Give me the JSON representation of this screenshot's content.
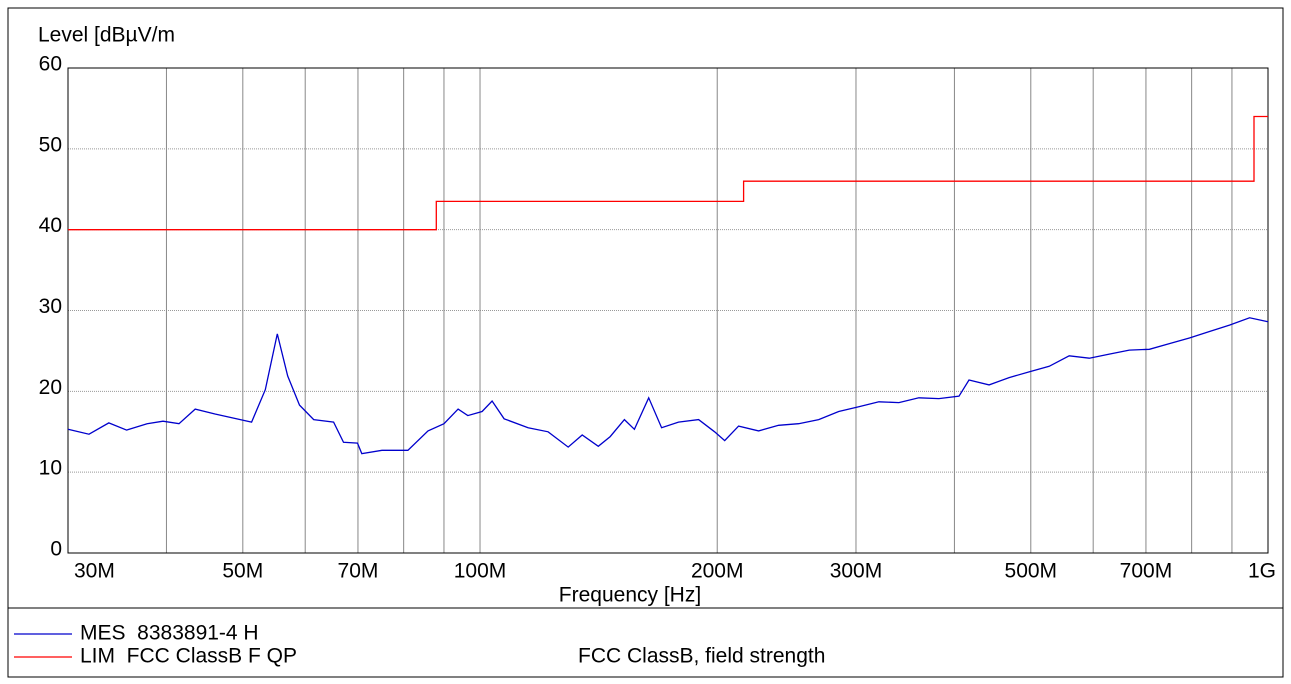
{
  "chart_data": {
    "type": "line",
    "ylabel": "Level [dBµV/m",
    "xlabel": "Frequency [Hz]",
    "log_x": true,
    "grid": true,
    "xlim": [
      30000000,
      1000000000
    ],
    "ylim": [
      0,
      60
    ],
    "yticks": [
      0,
      10,
      20,
      30,
      40,
      50,
      60
    ],
    "xticks": [
      {
        "value": 30000000,
        "label": "30M"
      },
      {
        "value": 50000000,
        "label": "50M"
      },
      {
        "value": 70000000,
        "label": "70M"
      },
      {
        "value": 100000000,
        "label": "100M"
      },
      {
        "value": 200000000,
        "label": "200M"
      },
      {
        "value": 300000000,
        "label": "300M"
      },
      {
        "value": 500000000,
        "label": "500M"
      },
      {
        "value": 700000000,
        "label": "700M"
      },
      {
        "value": 1000000000,
        "label": "1G"
      }
    ],
    "x_minor_ticks": [
      40000000,
      60000000,
      80000000,
      90000000,
      400000000,
      600000000,
      800000000,
      900000000
    ],
    "series": [
      {
        "name": "MES  8383891-4 H",
        "color": "#0000cc",
        "x": [
          30000000,
          31900000,
          33800000,
          35600000,
          37800000,
          39600000,
          41500000,
          43500000,
          46100000,
          51300000,
          53400000,
          55300000,
          57000000,
          59000000,
          61500000,
          65200000,
          67100000,
          69900000,
          70800000,
          75100000,
          81000000,
          85900000,
          90000000,
          93800000,
          96500000,
          100600000,
          103600000,
          107300000,
          115100000,
          122000000,
          129400000,
          134800000,
          141300000,
          146300000,
          152500000,
          157000000,
          163700000,
          170000000,
          178600000,
          189400000,
          198500000,
          204400000,
          212900000,
          225700000,
          239300000,
          253700000,
          269000000,
          285200000,
          302500000,
          320800000,
          340100000,
          360600000,
          382300000,
          405400000,
          417400000,
          442600000,
          469300000,
          497600000,
          527600000,
          559400000,
          593200000,
          628900000,
          666800000,
          707100000,
          749700000,
          794900000,
          842900000,
          893700000,
          947700000,
          1000000000
        ],
        "values": [
          15.3,
          14.7,
          16.1,
          15.2,
          16.0,
          16.3,
          16.0,
          17.8,
          17.2,
          16.2,
          20.2,
          27.1,
          21.9,
          18.3,
          16.5,
          16.2,
          13.7,
          13.6,
          12.3,
          12.7,
          12.7,
          15.1,
          16.0,
          17.8,
          17.0,
          17.5,
          18.8,
          16.6,
          15.5,
          15.0,
          13.1,
          14.6,
          13.2,
          14.4,
          16.5,
          15.3,
          19.2,
          15.5,
          16.2,
          16.5,
          15.0,
          13.9,
          15.7,
          15.1,
          15.8,
          16.0,
          16.5,
          17.5,
          18.1,
          18.7,
          18.6,
          19.2,
          19.1,
          19.4,
          21.4,
          20.8,
          21.7,
          22.4,
          23.1,
          24.4,
          24.1,
          24.6,
          25.1,
          25.2,
          25.9,
          26.6,
          27.4,
          28.2,
          29.1,
          28.6
        ]
      },
      {
        "name": "LIM  FCC ClassB F QP",
        "description": "FCC ClassB, field strength",
        "color": "#ff0000",
        "x": [
          30000000,
          88000000,
          88000000,
          216000000,
          216000000,
          960000000,
          960000000,
          1000000000
        ],
        "values": [
          40,
          40,
          43.5,
          43.5,
          46,
          46,
          54,
          54
        ]
      }
    ]
  }
}
